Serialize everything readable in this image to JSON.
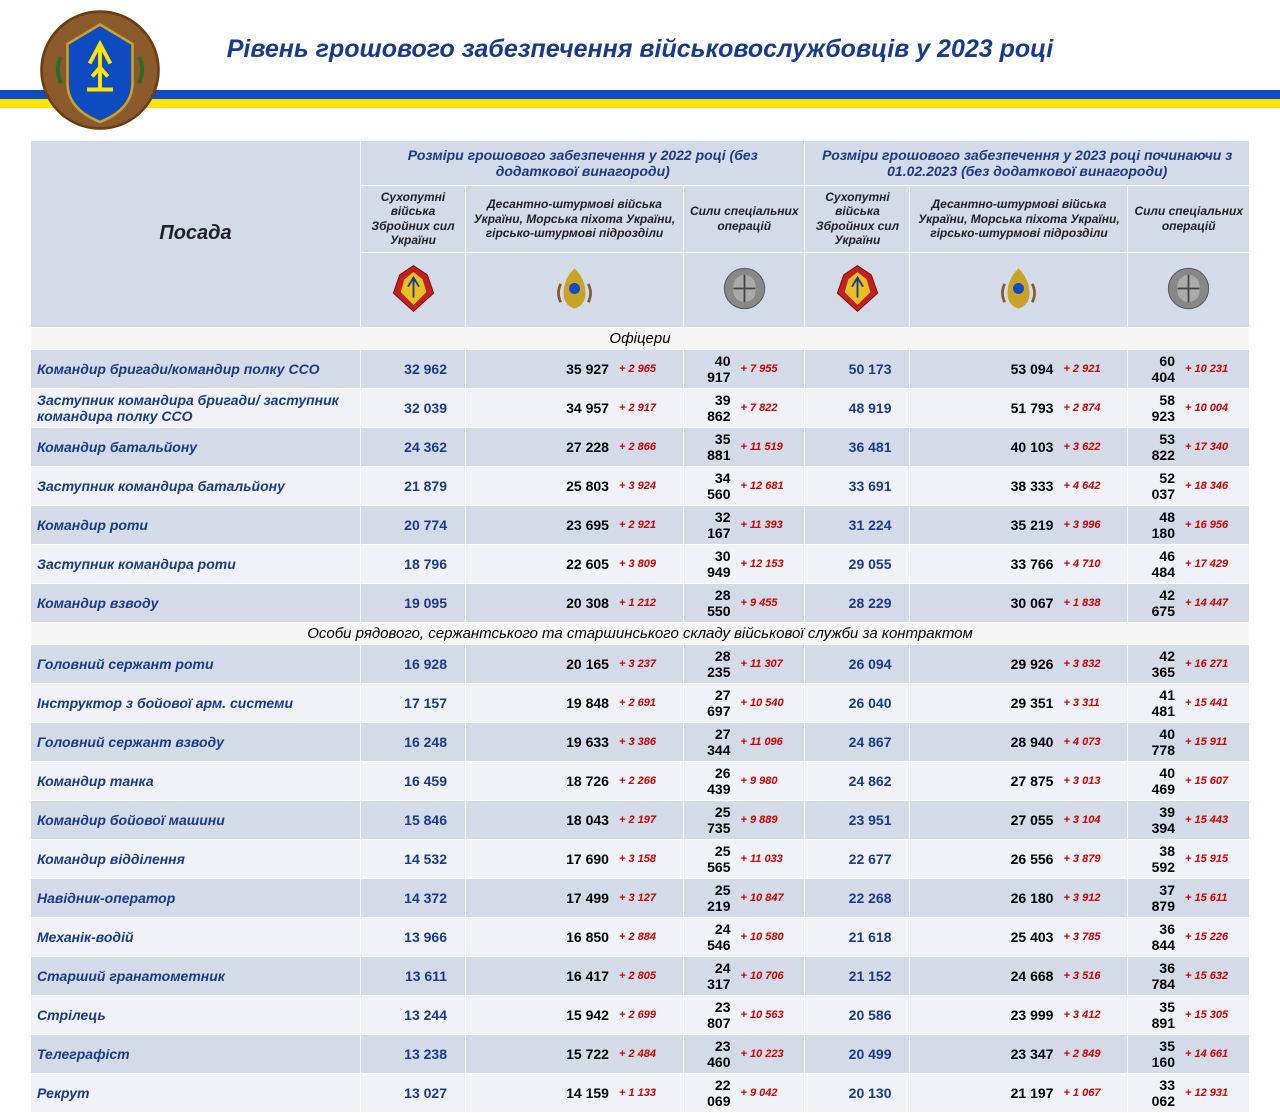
{
  "title": "Рівень грошового забезпечення військовослужбовців у 2023 році",
  "colors": {
    "flag_blue": "#0d4bc2",
    "flag_yellow": "#ffe400",
    "header_bg": "#d3dae8",
    "title_color": "#1a3a8a",
    "delta_color": "#d00000"
  },
  "headers": {
    "position": "Посада",
    "group_2022": "Розміри грошового забезпечення у 2022 році (без додаткової винагороди)",
    "group_2023": "Розміри грошового забезпечення у 2023 році починаючи з 01.02.2023 (без додаткової винагороди)",
    "col_ground": "Сухопутні війська Збройних сил України",
    "col_assault": "Десантно-штурмові війська України, Морська піхота України, гірсько-штурмові підрозділи",
    "col_special": "Сили спеціальних операцій"
  },
  "sections": {
    "officers": "Офіцери",
    "enlisted": "Особи рядового, сержантського та старшинського складу військової служби за контрактом"
  },
  "rows": {
    "officers": [
      {
        "pos": "Командир бригади/командир полку ССО",
        "a": "32 962",
        "b": "35 927",
        "bd": "+ 2 965",
        "c": "40 917",
        "cd": "+ 7 955",
        "d": "50 173",
        "e": "53 094",
        "ed": "+ 2 921",
        "f": "60 404",
        "fd": "+ 10 231"
      },
      {
        "pos": "Заступник командира бригади/ заступник командира полку ССО",
        "a": "32 039",
        "b": "34 957",
        "bd": "+ 2 917",
        "c": "39 862",
        "cd": "+ 7 822",
        "d": "48 919",
        "e": "51 793",
        "ed": "+ 2 874",
        "f": "58 923",
        "fd": "+ 10 004"
      },
      {
        "pos": "Командир батальйону",
        "a": "24 362",
        "b": "27 228",
        "bd": "+ 2 866",
        "c": "35 881",
        "cd": "+ 11 519",
        "d": "36 481",
        "e": "40 103",
        "ed": "+ 3 622",
        "f": "53 822",
        "fd": "+ 17 340"
      },
      {
        "pos": "Заступник командира батальйону",
        "a": "21 879",
        "b": "25 803",
        "bd": "+ 3 924",
        "c": "34 560",
        "cd": "+ 12 681",
        "d": "33 691",
        "e": "38 333",
        "ed": "+ 4 642",
        "f": "52 037",
        "fd": "+ 18 346"
      },
      {
        "pos": "Командир роти",
        "a": "20 774",
        "b": "23 695",
        "bd": "+ 2 921",
        "c": "32 167",
        "cd": "+ 11 393",
        "d": "31 224",
        "e": "35 219",
        "ed": "+ 3 996",
        "f": "48 180",
        "fd": "+ 16 956"
      },
      {
        "pos": "Заступник командира роти",
        "a": "18 796",
        "b": "22 605",
        "bd": "+ 3 809",
        "c": "30 949",
        "cd": "+ 12 153",
        "d": "29 055",
        "e": "33 766",
        "ed": "+ 4 710",
        "f": "46 484",
        "fd": "+ 17 429"
      },
      {
        "pos": "Командир взводу",
        "a": "19 095",
        "b": "20 308",
        "bd": "+ 1 212",
        "c": "28 550",
        "cd": "+ 9 455",
        "d": "28 229",
        "e": "30 067",
        "ed": "+ 1 838",
        "f": "42 675",
        "fd": "+ 14 447"
      }
    ],
    "enlisted": [
      {
        "pos": "Головний сержант роти",
        "a": "16 928",
        "b": "20 165",
        "bd": "+ 3 237",
        "c": "28 235",
        "cd": "+ 11 307",
        "d": "26 094",
        "e": "29 926",
        "ed": "+ 3 832",
        "f": "42 365",
        "fd": "+ 16 271"
      },
      {
        "pos": "Інструктор з бойової арм. системи",
        "a": "17 157",
        "b": "19 848",
        "bd": "+ 2 691",
        "c": "27 697",
        "cd": "+ 10 540",
        "d": "26 040",
        "e": "29 351",
        "ed": "+ 3 311",
        "f": "41 481",
        "fd": "+ 15 441"
      },
      {
        "pos": "Головний сержант взводу",
        "a": "16 248",
        "b": "19 633",
        "bd": "+ 3 386",
        "c": "27 344",
        "cd": "+ 11 096",
        "d": "24 867",
        "e": "28 940",
        "ed": "+ 4 073",
        "f": "40 778",
        "fd": "+ 15 911"
      },
      {
        "pos": "Командир танка",
        "a": "16 459",
        "b": "18 726",
        "bd": "+ 2 266",
        "c": "26 439",
        "cd": "+ 9 980",
        "d": "24 862",
        "e": "27 875",
        "ed": "+ 3 013",
        "f": "40 469",
        "fd": "+ 15 607"
      },
      {
        "pos": "Командир бойової машини",
        "a": "15 846",
        "b": "18 043",
        "bd": "+ 2 197",
        "c": "25 735",
        "cd": "+ 9 889",
        "d": "23 951",
        "e": "27 055",
        "ed": "+ 3 104",
        "f": "39 394",
        "fd": "+ 15 443"
      },
      {
        "pos": "Командир відділення",
        "a": "14 532",
        "b": "17 690",
        "bd": "+ 3 158",
        "c": "25 565",
        "cd": "+ 11 033",
        "d": "22 677",
        "e": "26 556",
        "ed": "+ 3 879",
        "f": "38 592",
        "fd": "+ 15 915"
      },
      {
        "pos": "Навідник-оператор",
        "a": "14 372",
        "b": "17 499",
        "bd": "+ 3 127",
        "c": "25 219",
        "cd": "+ 10 847",
        "d": "22 268",
        "e": "26 180",
        "ed": "+ 3 912",
        "f": "37 879",
        "fd": "+ 15 611"
      },
      {
        "pos": "Механік-водій",
        "a": "13 966",
        "b": "16 850",
        "bd": "+ 2 884",
        "c": "24 546",
        "cd": "+ 10 580",
        "d": "21 618",
        "e": "25 403",
        "ed": "+ 3 785",
        "f": "36 844",
        "fd": "+ 15 226"
      },
      {
        "pos": "Старший гранатометник",
        "a": "13 611",
        "b": "16 417",
        "bd": "+ 2 805",
        "c": "24 317",
        "cd": "+ 10 706",
        "d": "21 152",
        "e": "24 668",
        "ed": "+ 3 516",
        "f": "36 784",
        "fd": "+ 15 632"
      },
      {
        "pos": "Стрілець",
        "a": "13 244",
        "b": "15 942",
        "bd": "+ 2 699",
        "c": "23 807",
        "cd": "+ 10 563",
        "d": "20 586",
        "e": "23 999",
        "ed": "+ 3 412",
        "f": "35 891",
        "fd": "+ 15 305"
      },
      {
        "pos": "Телеграфіст",
        "a": "13 238",
        "b": "15 722",
        "bd": "+ 2 484",
        "c": "23 460",
        "cd": "+ 10 223",
        "d": "20 499",
        "e": "23 347",
        "ed": "+ 2 849",
        "f": "35 160",
        "fd": "+ 14 661"
      },
      {
        "pos": "Рекрут",
        "a": "13 027",
        "b": "14 159",
        "bd": "+ 1 133",
        "c": "22 069",
        "cd": "+ 9 042",
        "d": "20 130",
        "e": "21 197",
        "ed": "+ 1 067",
        "f": "33 062",
        "fd": "+ 12 931"
      }
    ]
  }
}
